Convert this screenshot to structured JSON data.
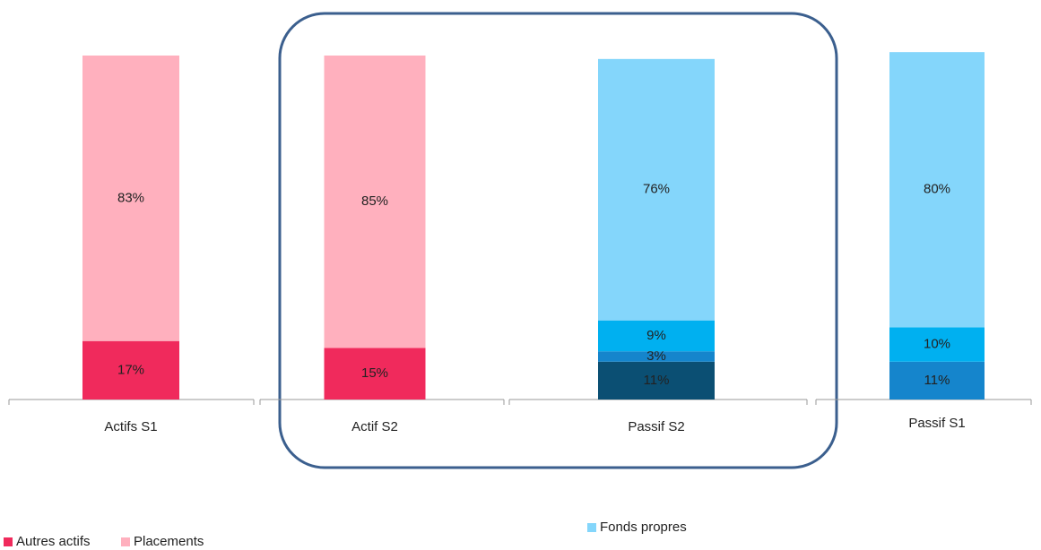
{
  "chart_data": {
    "type": "stacked_bar",
    "categories": [
      "Actifs S1",
      "Actif S2",
      "Passif S2",
      "Passif S1"
    ],
    "ylim": [
      0,
      100
    ],
    "series": [
      {
        "name": "Autres actifs",
        "color": "#f02a5c",
        "values": [
          17,
          15,
          null,
          null
        ],
        "value_labels": [
          "17%",
          "15%",
          null,
          null
        ]
      },
      {
        "name": "Placements",
        "color": "#ffb0be",
        "values": [
          83,
          85,
          null,
          null
        ],
        "value_labels": [
          "83%",
          "85%",
          null,
          null
        ]
      },
      {
        "color": "#0b4f73",
        "values": [
          null,
          null,
          11,
          null
        ],
        "value_labels": [
          null,
          null,
          "11%",
          null
        ]
      },
      {
        "color": "#1585cc",
        "values": [
          null,
          null,
          3,
          11
        ],
        "value_labels": [
          null,
          null,
          "3%",
          "11%"
        ]
      },
      {
        "color": "#00b0f0",
        "values": [
          null,
          null,
          9,
          10
        ],
        "value_labels": [
          null,
          null,
          "9%",
          "10%"
        ]
      },
      {
        "name": "Fonds propres",
        "color": "#84d6fb",
        "values": [
          null,
          null,
          76,
          80
        ],
        "value_labels": [
          null,
          null,
          "76%",
          "80%"
        ]
      }
    ]
  }
}
